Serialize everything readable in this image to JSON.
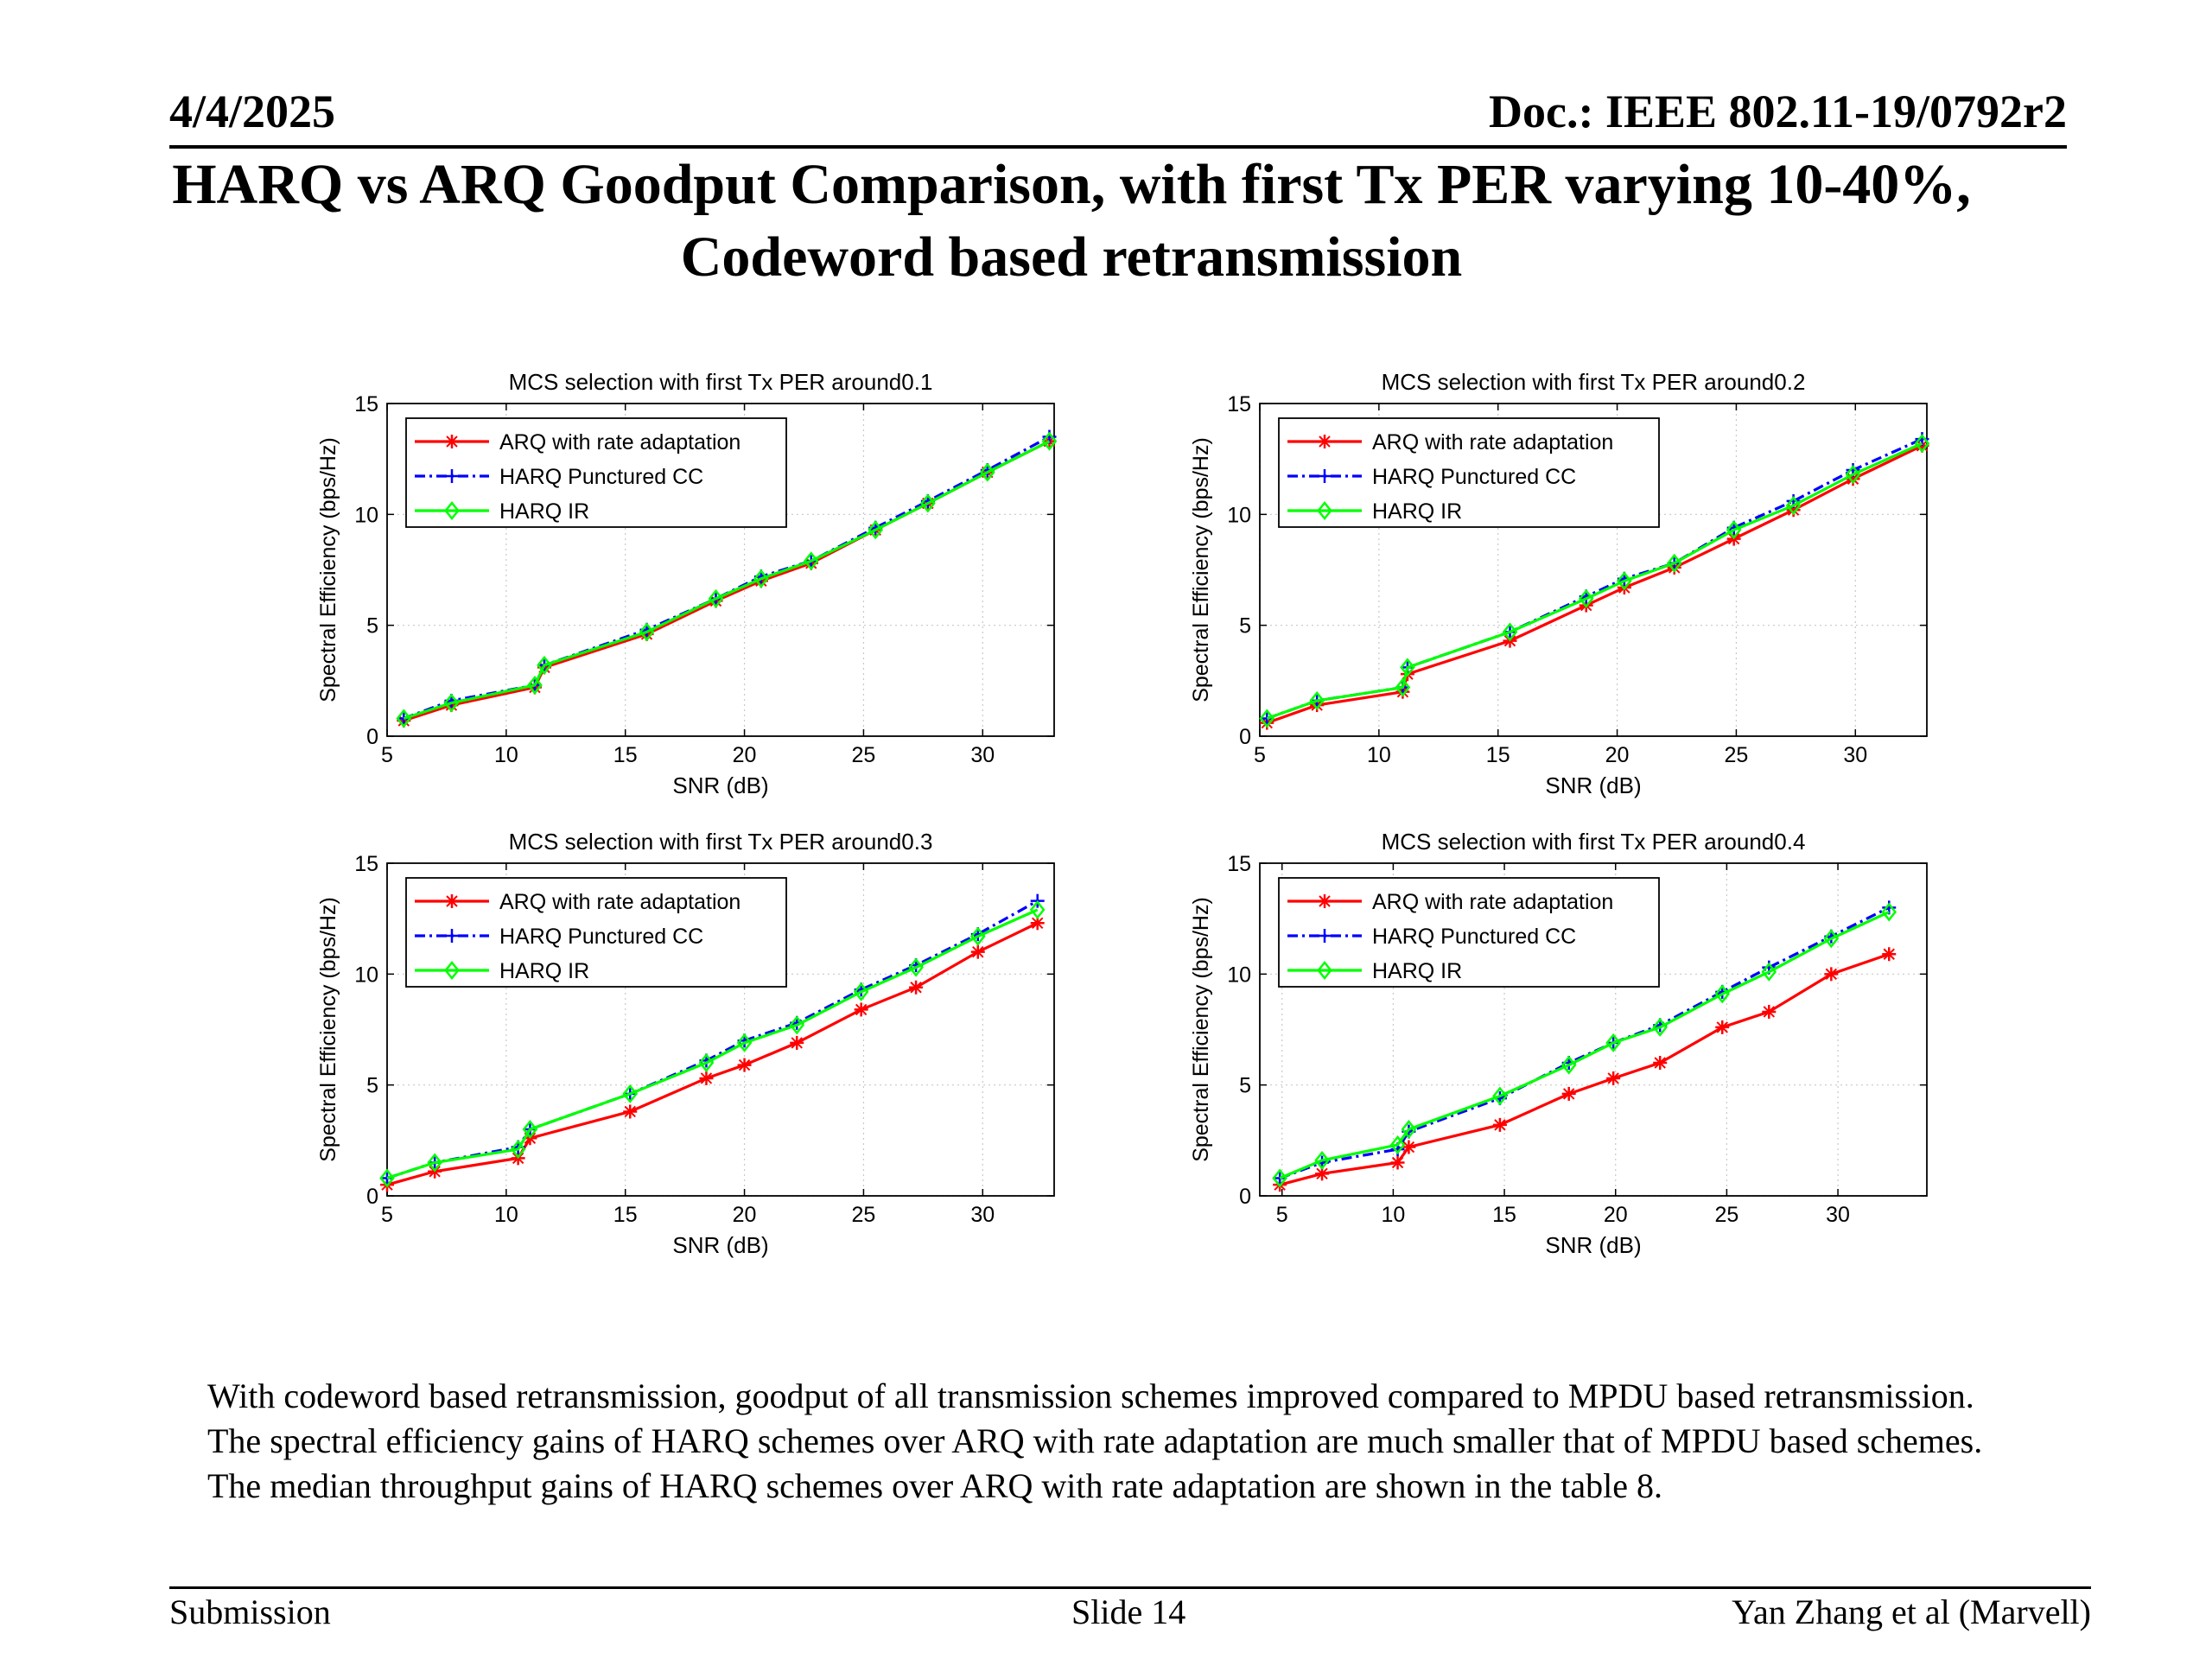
{
  "header": {
    "date": "4/4/2025",
    "doc": "Doc.: IEEE 802.11-19/0792r2"
  },
  "title": {
    "line1": "HARQ vs ARQ Goodput Comparison, with first Tx PER varying 10-40%,",
    "line2": "Codeword based retransmission"
  },
  "body_text": "With codeword based retransmission, goodput of all transmission schemes improved compared to MPDU based retransmission. The spectral efficiency gains of HARQ schemes over ARQ with rate adaptation are much smaller that of MPDU based schemes. The median throughput gains of HARQ schemes over ARQ with rate adaptation are shown in the table 8.",
  "footer": {
    "left": "Submission",
    "center": "Slide 14",
    "right": "Yan Zhang et al (Marvell)"
  },
  "colors": {
    "arq": "#ff0000",
    "harq_cc": "#0000ff",
    "harq_ir": "#00ff00"
  },
  "chart_data": [
    {
      "type": "line",
      "title": "MCS selection with first Tx PER around0.1",
      "xlabel": "SNR (dB)",
      "ylabel": "Spectral Efficiency (bps/Hz)",
      "xlim": [
        5,
        33
      ],
      "ylim": [
        0,
        15
      ],
      "xticks": [
        5,
        10,
        15,
        20,
        25,
        30
      ],
      "yticks": [
        0,
        5,
        10,
        15
      ],
      "grid": true,
      "legend": "top-left",
      "series": [
        {
          "name": "ARQ with rate adaptation",
          "color": "#ff0000",
          "marker": "star",
          "dash": "solid",
          "x": [
            5.7,
            7.7,
            11.2,
            11.6,
            15.9,
            18.8,
            20.7,
            22.8,
            25.5,
            27.7,
            30.2,
            32.8
          ],
          "y": [
            0.7,
            1.4,
            2.2,
            3.1,
            4.6,
            6.1,
            7.0,
            7.8,
            9.3,
            10.5,
            11.9,
            13.3
          ]
        },
        {
          "name": "HARQ Punctured CC",
          "color": "#0000ff",
          "marker": "plus",
          "dash": "dashdot",
          "x": [
            5.7,
            7.7,
            11.2,
            11.6,
            15.9,
            18.8,
            20.7,
            22.8,
            25.5,
            27.7,
            30.2,
            32.8
          ],
          "y": [
            0.8,
            1.6,
            2.3,
            3.2,
            4.8,
            6.2,
            7.2,
            7.9,
            9.4,
            10.6,
            12.0,
            13.5
          ]
        },
        {
          "name": "HARQ IR",
          "color": "#00ff00",
          "marker": "diamond",
          "dash": "solid",
          "x": [
            5.7,
            7.7,
            11.2,
            11.6,
            15.9,
            18.8,
            20.7,
            22.8,
            25.5,
            27.7,
            30.2,
            32.8
          ],
          "y": [
            0.8,
            1.5,
            2.3,
            3.2,
            4.7,
            6.2,
            7.1,
            7.9,
            9.3,
            10.5,
            11.9,
            13.3
          ]
        }
      ]
    },
    {
      "type": "line",
      "title": "MCS selection with first Tx PER around0.2",
      "xlabel": "SNR (dB)",
      "ylabel": "Spectral Efficiency (bps/Hz)",
      "xlim": [
        5,
        33
      ],
      "ylim": [
        0,
        15
      ],
      "xticks": [
        5,
        10,
        15,
        20,
        25,
        30
      ],
      "yticks": [
        0,
        5,
        10,
        15
      ],
      "grid": true,
      "legend": "top-left",
      "series": [
        {
          "name": "ARQ with rate adaptation",
          "color": "#ff0000",
          "marker": "star",
          "dash": "solid",
          "x": [
            5.3,
            7.4,
            11.0,
            11.2,
            15.5,
            18.7,
            20.3,
            22.4,
            24.9,
            27.4,
            29.9,
            32.8
          ],
          "y": [
            0.6,
            1.4,
            2.0,
            2.8,
            4.3,
            5.9,
            6.7,
            7.6,
            8.9,
            10.2,
            11.6,
            13.1
          ]
        },
        {
          "name": "HARQ Punctured CC",
          "color": "#0000ff",
          "marker": "plus",
          "dash": "dashdot",
          "x": [
            5.3,
            7.4,
            11.0,
            11.2,
            15.5,
            18.7,
            20.3,
            22.4,
            24.9,
            27.4,
            29.9,
            32.8
          ],
          "y": [
            0.8,
            1.6,
            2.2,
            3.1,
            4.7,
            6.3,
            7.1,
            7.8,
            9.4,
            10.6,
            12.0,
            13.4
          ]
        },
        {
          "name": "HARQ IR",
          "color": "#00ff00",
          "marker": "diamond",
          "dash": "solid",
          "x": [
            5.3,
            7.4,
            11.0,
            11.2,
            15.5,
            18.7,
            20.3,
            22.4,
            24.9,
            27.4,
            29.9,
            32.8
          ],
          "y": [
            0.8,
            1.6,
            2.2,
            3.1,
            4.7,
            6.2,
            7.0,
            7.8,
            9.3,
            10.4,
            11.8,
            13.2
          ]
        }
      ]
    },
    {
      "type": "line",
      "title": "MCS selection with first Tx PER around0.3",
      "xlabel": "SNR (dB)",
      "ylabel": "Spectral Efficiency (bps/Hz)",
      "xlim": [
        5,
        33
      ],
      "ylim": [
        0,
        15
      ],
      "xticks": [
        5,
        10,
        15,
        20,
        25,
        30
      ],
      "yticks": [
        0,
        5,
        10,
        15
      ],
      "grid": true,
      "legend": "top-left",
      "series": [
        {
          "name": "ARQ with rate adaptation",
          "color": "#ff0000",
          "marker": "star",
          "dash": "solid",
          "x": [
            5.0,
            7.0,
            10.5,
            11.0,
            15.2,
            18.4,
            20.0,
            22.2,
            24.9,
            27.2,
            29.8,
            32.3
          ],
          "y": [
            0.5,
            1.1,
            1.7,
            2.6,
            3.8,
            5.3,
            5.9,
            6.9,
            8.4,
            9.4,
            11.0,
            12.3
          ]
        },
        {
          "name": "HARQ Punctured CC",
          "color": "#0000ff",
          "marker": "plus",
          "dash": "dashdot",
          "x": [
            5.0,
            7.0,
            10.5,
            11.0,
            15.2,
            18.4,
            20.0,
            22.2,
            24.9,
            27.2,
            29.8,
            32.3
          ],
          "y": [
            0.8,
            1.5,
            2.2,
            3.0,
            4.6,
            6.1,
            7.0,
            7.8,
            9.3,
            10.4,
            11.8,
            13.3
          ]
        },
        {
          "name": "HARQ IR",
          "color": "#00ff00",
          "marker": "diamond",
          "dash": "solid",
          "x": [
            5.0,
            7.0,
            10.5,
            11.0,
            15.2,
            18.4,
            20.0,
            22.2,
            24.9,
            27.2,
            29.8,
            32.3
          ],
          "y": [
            0.8,
            1.5,
            2.1,
            3.0,
            4.6,
            6.0,
            6.9,
            7.7,
            9.2,
            10.3,
            11.7,
            12.9
          ]
        }
      ]
    },
    {
      "type": "line",
      "title": "MCS selection with first Tx PER around0.4",
      "xlabel": "SNR (dB)",
      "ylabel": "Spectral Efficiency (bps/Hz)",
      "xlim": [
        4,
        34
      ],
      "ylim": [
        0,
        15
      ],
      "xticks": [
        5,
        10,
        15,
        20,
        25,
        30
      ],
      "yticks": [
        0,
        5,
        10,
        15
      ],
      "grid": true,
      "legend": "top-left",
      "series": [
        {
          "name": "ARQ with rate adaptation",
          "color": "#ff0000",
          "marker": "star",
          "dash": "solid",
          "x": [
            4.9,
            6.8,
            10.2,
            10.7,
            14.8,
            17.9,
            19.9,
            22.0,
            24.8,
            26.9,
            29.7,
            32.3
          ],
          "y": [
            0.5,
            1.0,
            1.5,
            2.2,
            3.2,
            4.6,
            5.3,
            6.0,
            7.6,
            8.3,
            10.0,
            10.9
          ]
        },
        {
          "name": "HARQ Punctured CC",
          "color": "#0000ff",
          "marker": "plus",
          "dash": "dashdot",
          "x": [
            4.9,
            6.8,
            10.2,
            10.7,
            14.8,
            17.9,
            19.9,
            22.0,
            24.8,
            26.9,
            29.7,
            32.3
          ],
          "y": [
            0.8,
            1.5,
            2.1,
            2.9,
            4.4,
            6.0,
            6.9,
            7.7,
            9.2,
            10.3,
            11.7,
            13.0
          ]
        },
        {
          "name": "HARQ IR",
          "color": "#00ff00",
          "marker": "diamond",
          "dash": "solid",
          "x": [
            4.9,
            6.8,
            10.2,
            10.7,
            14.8,
            17.9,
            19.9,
            22.0,
            24.8,
            26.9,
            29.7,
            32.3
          ],
          "y": [
            0.8,
            1.6,
            2.3,
            3.0,
            4.5,
            5.9,
            6.9,
            7.6,
            9.1,
            10.1,
            11.6,
            12.8
          ]
        }
      ]
    }
  ]
}
